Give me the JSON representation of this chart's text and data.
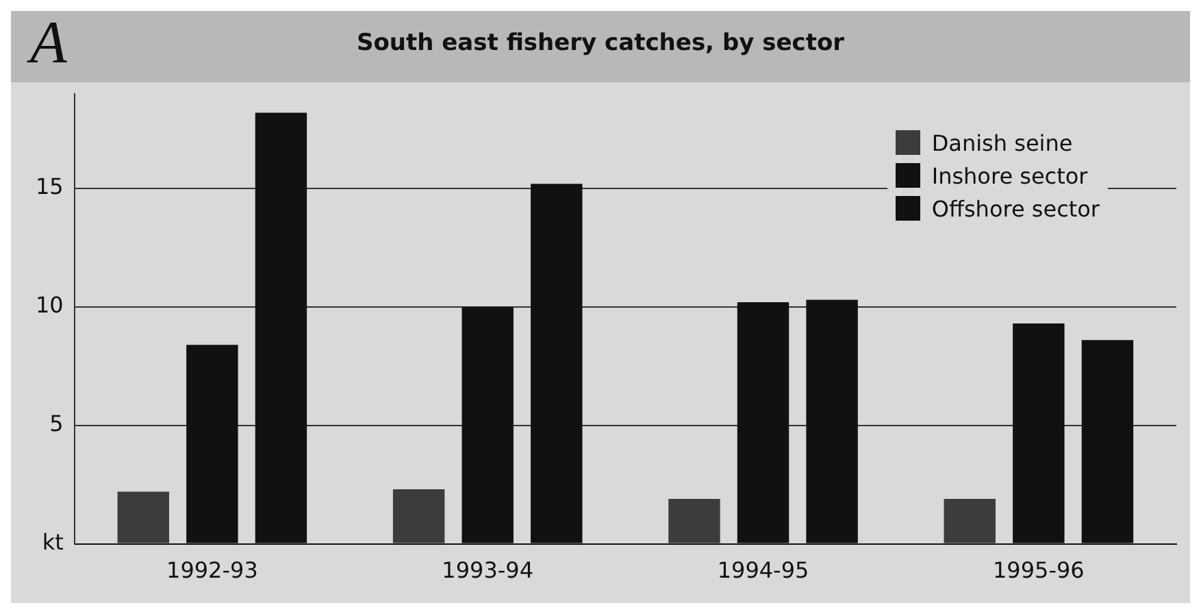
{
  "chart_data": {
    "type": "bar",
    "title": "South east fishery catches, by sector",
    "annotations": [
      "A"
    ],
    "categories": [
      "1992-93",
      "1993-94",
      "1994-95",
      "1995-96"
    ],
    "series": [
      {
        "name": "Danish seine",
        "color": "#3c3c3c",
        "values": [
          2.2,
          2.3,
          1.9,
          1.9
        ]
      },
      {
        "name": "Inshore sector",
        "color": "#111111",
        "values": [
          8.4,
          10.0,
          10.2,
          9.3
        ]
      },
      {
        "name": "Offshore sector",
        "color": "#111111",
        "values": [
          18.2,
          15.2,
          10.3,
          8.6
        ]
      }
    ],
    "ylim": [
      0,
      19
    ],
    "yticks": [
      {
        "value": 0,
        "label": "kt"
      },
      5,
      10,
      15
    ],
    "grid": "y",
    "legend": "top right"
  }
}
